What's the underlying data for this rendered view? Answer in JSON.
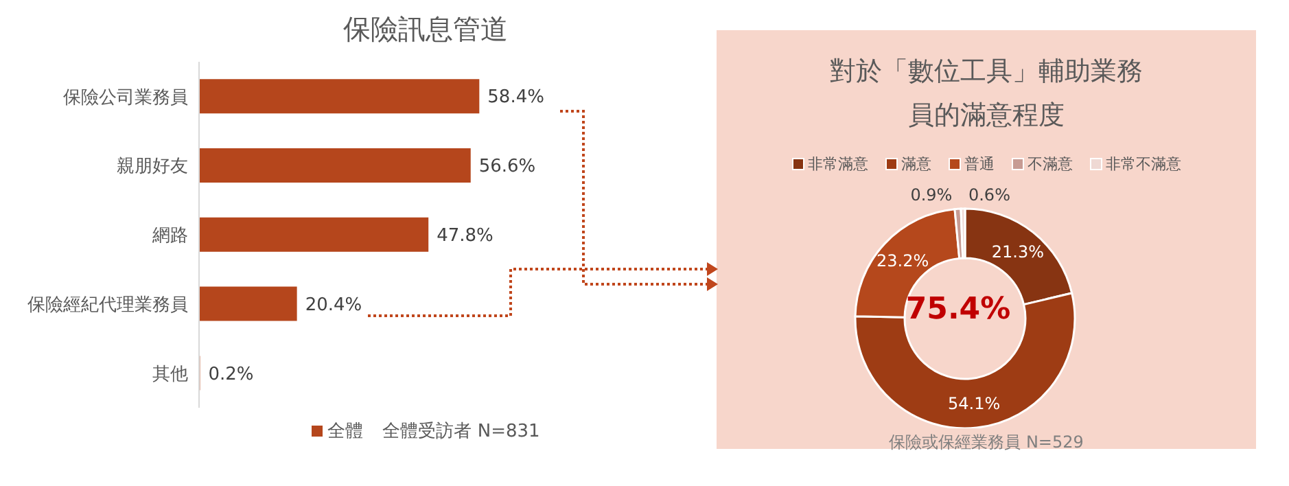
{
  "chart_data": [
    {
      "type": "bar",
      "orientation": "horizontal",
      "title": "保險訊息管道",
      "categories": [
        "保險公司業務員",
        "親朋好友",
        "網路",
        "保險經紀代理業務員",
        "其他"
      ],
      "series": [
        {
          "name": "全體",
          "color": "#b5461c",
          "values": [
            58.4,
            56.6,
            47.8,
            20.4,
            0.2
          ],
          "value_labels": [
            "58.4%",
            "56.6%",
            "47.8%",
            "20.4%",
            "0.2%"
          ]
        }
      ],
      "legend": "bottom",
      "tick_labels": "y",
      "annotations": [
        "全體受訪者 N=831"
      ]
    },
    {
      "type": "donut",
      "title": "對於「數位工具」輔助業務員的滿意程度",
      "categories": [
        "非常滿意",
        "滿意",
        "普通",
        "不滿意",
        "非常不滿意"
      ],
      "values": [
        21.3,
        54.1,
        23.2,
        0.9,
        0.6
      ],
      "value_labels": [
        "21.3%",
        "54.1%",
        "23.2%",
        "0.9%",
        "0.6%"
      ],
      "colors": [
        "#873412",
        "#9e3c14",
        "#b5481c",
        "#c79b93",
        "#efd9d4"
      ],
      "legend": "top",
      "annotations": [
        "75.4%",
        "保險或保經業務員 N=529"
      ]
    }
  ]
}
